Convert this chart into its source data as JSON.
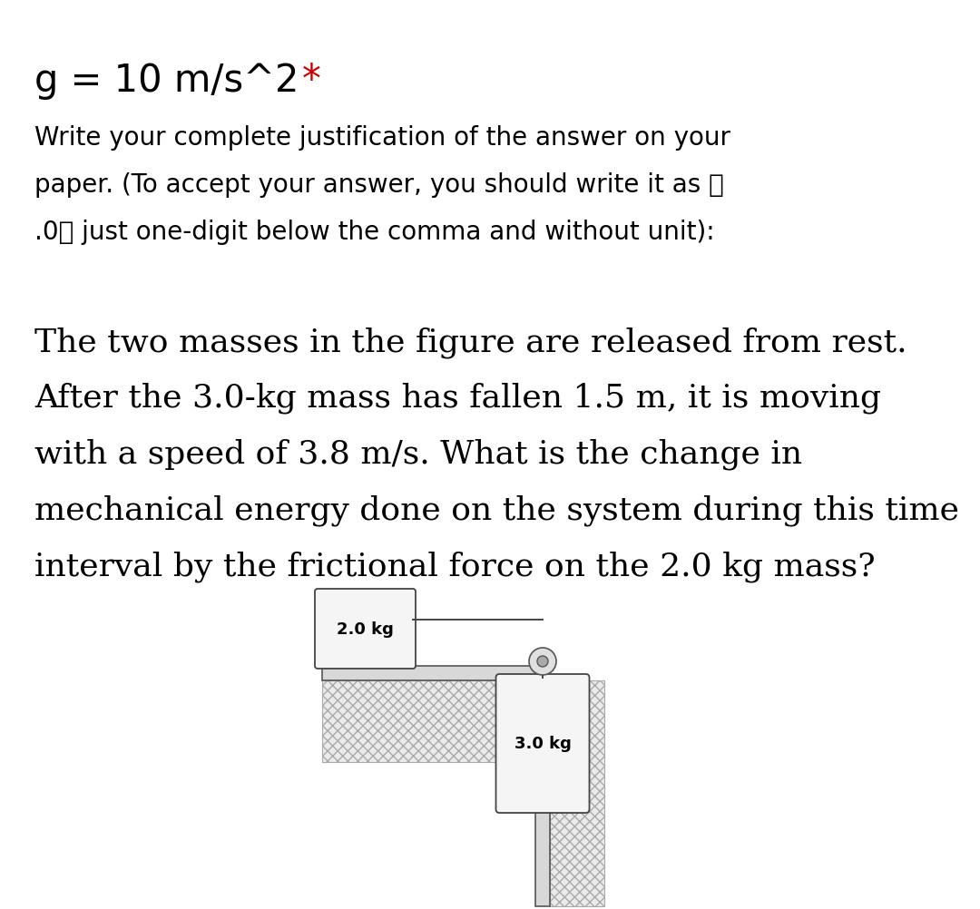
{
  "bg_color": "#ffffff",
  "title_black": "g = 10 m/s^2 ",
  "title_star": "*",
  "title_color_main": "#000000",
  "title_color_star": "#cc0000",
  "instruction_lines": [
    "Write your complete justification of the answer on your",
    "paper. (To accept your answer, you should write it as 👉",
    ".0👉 just one-digit below the comma and without unit):"
  ],
  "problem_lines": [
    "The two masses in the figure are released from rest.",
    "After the 3.0-kg mass has fallen 1.5 m, it is moving",
    "with a speed of 3.8 m/s. What is the change in",
    "mechanical energy done on the system during this time",
    "interval by the frictional force on the 2.0 kg mass?"
  ],
  "mass1_label": "2.0 kg",
  "mass2_label": "3.0 kg",
  "fig_width": 10.8,
  "fig_height": 10.03
}
